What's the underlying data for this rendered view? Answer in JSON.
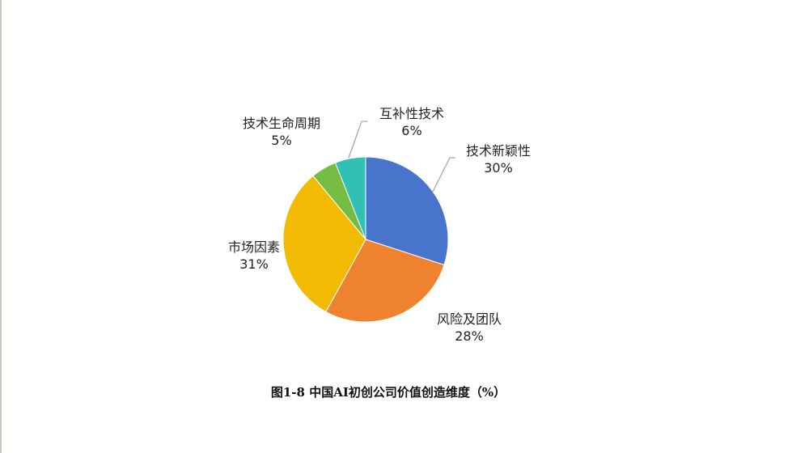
{
  "chart_data": {
    "type": "pie",
    "title": "图1-8 中国AI初创公司价值创造维度（%）",
    "start_angle": "12 o'clock",
    "direction": "clockwise",
    "slices": [
      {
        "label": "技术新颖性",
        "value": 30,
        "value_label": "30%",
        "color": "#4874cb"
      },
      {
        "label": "风险及团队",
        "value": 28,
        "value_label": "28%",
        "color": "#ee822f"
      },
      {
        "label": "市场因素",
        "value": 31,
        "value_label": "31%",
        "color": "#f2ba02"
      },
      {
        "label": "技术生命周期",
        "value": 5,
        "value_label": "5%",
        "color": "#75bd42"
      },
      {
        "label": "互补性技术",
        "value": 6,
        "value_label": "6%",
        "color": "#30c0b4"
      }
    ]
  }
}
